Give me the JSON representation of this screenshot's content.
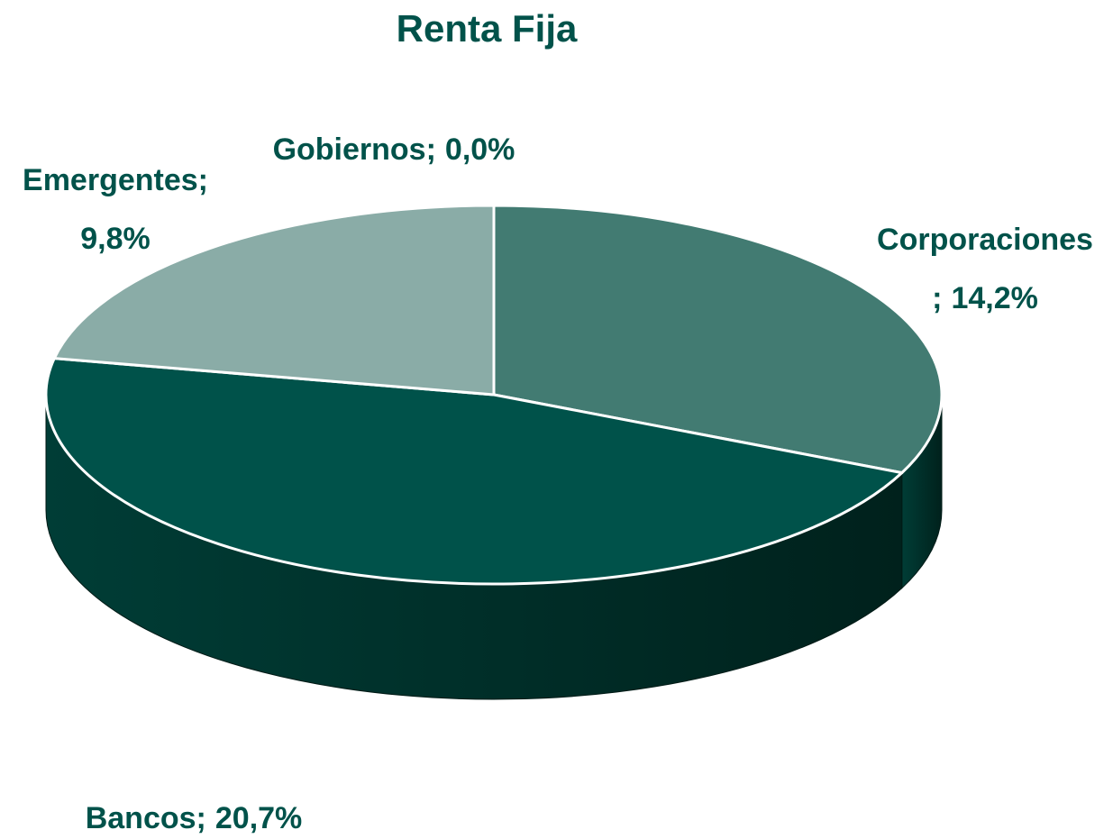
{
  "chart_data": {
    "type": "pie3d",
    "title": "Renta Fija",
    "categories": [
      "Gobiernos",
      "Corporaciones",
      "Bancos",
      "Emergentes"
    ],
    "values": [
      0.0,
      14.2,
      20.7,
      9.8
    ],
    "value_labels": [
      "0,0%",
      "14,2%",
      "20,7%",
      "9,8%"
    ],
    "label_separator": ";",
    "colors": [
      "#1f6b5e",
      "#427b72",
      "#00524a",
      "#8aaca7"
    ]
  }
}
